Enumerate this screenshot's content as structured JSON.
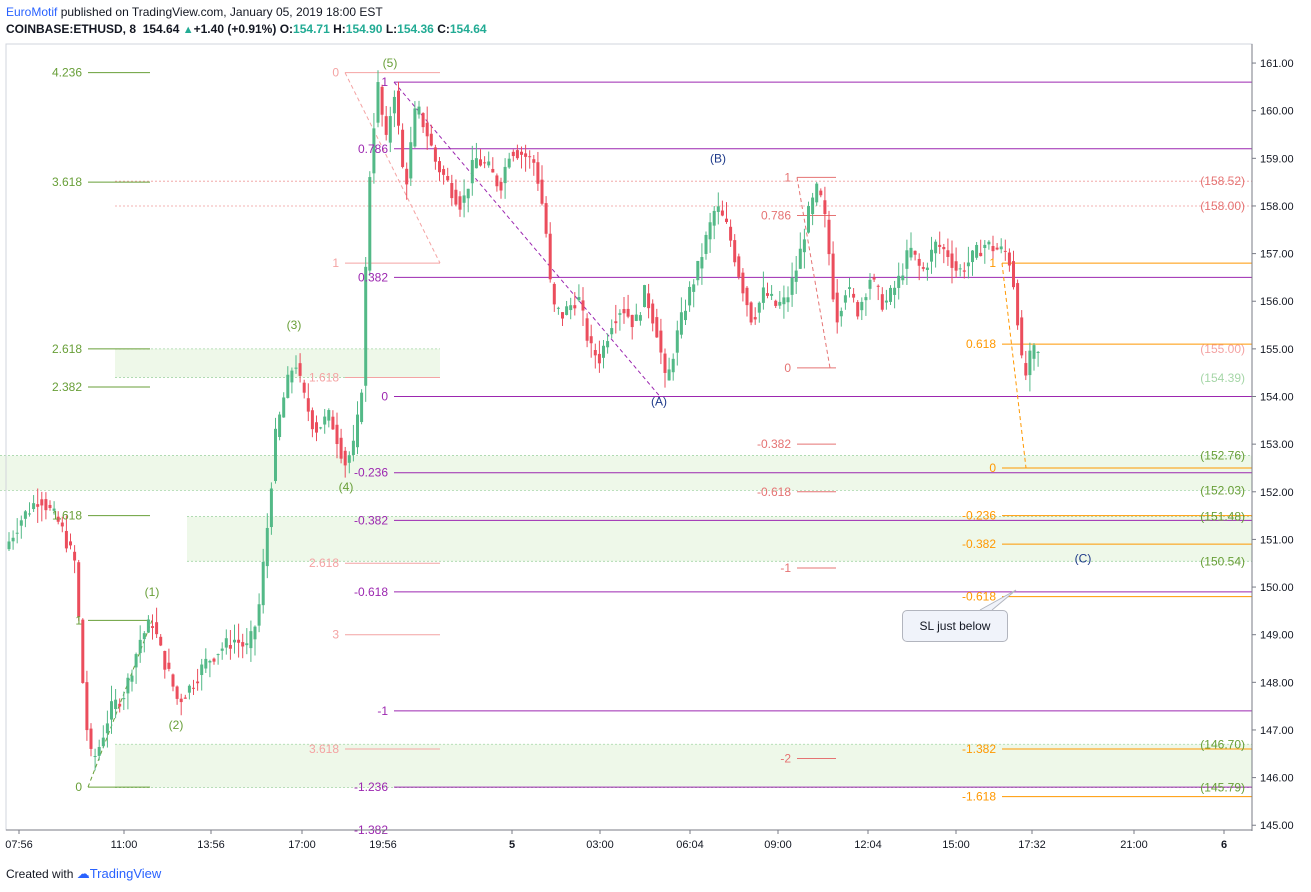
{
  "header": {
    "author": "EuroMotif",
    "published_text": "published on TradingView.com, January 05, 2019 18:00 EST",
    "symbol": "COINBASE:ETHUSD, 8",
    "last": "154.64",
    "change": "+1.40 (+0.91%)",
    "o_label": "O:",
    "o_value": "154.71",
    "h_label": "H:",
    "h_value": "154.90",
    "l_label": "L:",
    "l_value": "154.36",
    "c_label": "C:",
    "c_value": "154.64",
    "up_arrow_icon": "triangle-up-icon"
  },
  "footer": {
    "created_with": "Created with",
    "brand": "TradingView",
    "logo_icon": "tradingview-cloud-icon"
  },
  "callout": {
    "text": "SL just below"
  },
  "colors": {
    "up": "#53b987",
    "down": "#eb4d5c",
    "purple": "#9c27b0",
    "green": "#689f38",
    "orange": "#ff9800",
    "red": "#e57373",
    "pink": "#f4a3a3",
    "grey_green": "#8fa88f",
    "zone": "#e8f5e2",
    "wave_blue": "#1e3a8a"
  },
  "chart_data": {
    "type": "candlestick",
    "symbol": "COINBASE:ETHUSD",
    "interval": "8",
    "ylim": [
      144.9,
      161.4
    ],
    "y_ticks": [
      "161.00",
      "160.00",
      "159.00",
      "158.00",
      "157.00",
      "156.00",
      "155.00",
      "154.00",
      "153.00",
      "152.00",
      "151.00",
      "150.00",
      "149.00",
      "148.00",
      "147.00",
      "146.00",
      "145.00"
    ],
    "x_ticks": [
      "07:56",
      "11:00",
      "13:56",
      "17:00",
      "19:56",
      "5",
      "03:00",
      "06:04",
      "09:00",
      "12:04",
      "15:00",
      "17:32",
      "21:00",
      "6"
    ],
    "price_path": [
      [
        0,
        150.6
      ],
      [
        20,
        151.4
      ],
      [
        40,
        151.9
      ],
      [
        60,
        151.3
      ],
      [
        75,
        150.5
      ],
      [
        85,
        147.3
      ],
      [
        92,
        146.3
      ],
      [
        100,
        146.7
      ],
      [
        110,
        147.4
      ],
      [
        125,
        147.8
      ],
      [
        140,
        148.9
      ],
      [
        152,
        149.3
      ],
      [
        160,
        148.7
      ],
      [
        170,
        148.1
      ],
      [
        178,
        147.6
      ],
      [
        190,
        147.9
      ],
      [
        205,
        148.4
      ],
      [
        220,
        148.7
      ],
      [
        235,
        148.9
      ],
      [
        248,
        148.7
      ],
      [
        258,
        149.4
      ],
      [
        268,
        151.4
      ],
      [
        275,
        153.1
      ],
      [
        285,
        154.1
      ],
      [
        295,
        154.8
      ],
      [
        302,
        154.1
      ],
      [
        315,
        153.3
      ],
      [
        330,
        153.6
      ],
      [
        345,
        152.6
      ],
      [
        355,
        153.0
      ],
      [
        362,
        154.3
      ],
      [
        368,
        158.1
      ],
      [
        372,
        159.4
      ],
      [
        378,
        160.5
      ],
      [
        386,
        159.3
      ],
      [
        394,
        160.5
      ],
      [
        405,
        158.3
      ],
      [
        416,
        160.1
      ],
      [
        426,
        159.6
      ],
      [
        436,
        158.9
      ],
      [
        450,
        158.4
      ],
      [
        462,
        158.0
      ],
      [
        475,
        159.0
      ],
      [
        488,
        158.8
      ],
      [
        500,
        158.4
      ],
      [
        510,
        159.2
      ],
      [
        522,
        159.1
      ],
      [
        535,
        158.9
      ],
      [
        545,
        157.7
      ],
      [
        552,
        155.9
      ],
      [
        562,
        155.7
      ],
      [
        578,
        156.1
      ],
      [
        590,
        155.0
      ],
      [
        600,
        154.8
      ],
      [
        612,
        155.6
      ],
      [
        622,
        155.9
      ],
      [
        635,
        155.5
      ],
      [
        645,
        156.2
      ],
      [
        658,
        155.3
      ],
      [
        666,
        154.2
      ],
      [
        676,
        155.2
      ],
      [
        688,
        156.1
      ],
      [
        698,
        156.7
      ],
      [
        706,
        157.3
      ],
      [
        716,
        158.0
      ],
      [
        728,
        157.5
      ],
      [
        740,
        156.5
      ],
      [
        752,
        155.6
      ],
      [
        764,
        156.2
      ],
      [
        776,
        155.9
      ],
      [
        786,
        156.0
      ],
      [
        798,
        156.8
      ],
      [
        808,
        157.8
      ],
      [
        818,
        158.4
      ],
      [
        826,
        157.6
      ],
      [
        836,
        155.6
      ],
      [
        846,
        156.3
      ],
      [
        858,
        155.8
      ],
      [
        870,
        156.5
      ],
      [
        884,
        155.9
      ],
      [
        898,
        156.4
      ],
      [
        910,
        157.1
      ],
      [
        922,
        156.6
      ],
      [
        936,
        157.2
      ],
      [
        948,
        157.0
      ],
      [
        958,
        156.6
      ],
      [
        972,
        156.9
      ],
      [
        984,
        157.2
      ],
      [
        996,
        157.1
      ],
      [
        1008,
        157.0
      ],
      [
        1016,
        156.1
      ],
      [
        1020,
        155.0
      ],
      [
        1024,
        154.3
      ],
      [
        1030,
        154.8
      ],
      [
        1036,
        155.0
      ],
      [
        1042,
        154.64
      ]
    ],
    "fib_sets": [
      {
        "name": "fib-left",
        "color": "#689f38",
        "x1": 88,
        "x2": 150,
        "levels": [
          {
            "label": "4.236",
            "price": 160.8
          },
          {
            "label": "3.618",
            "price": 158.5
          },
          {
            "label": "2.618",
            "price": 155.0
          },
          {
            "label": "2.382",
            "price": 154.2
          },
          {
            "label": "1.618",
            "price": 151.5
          },
          {
            "label": "1",
            "price": 149.3
          },
          {
            "label": "0",
            "price": 145.8
          }
        ]
      },
      {
        "name": "fib-pink",
        "color": "#f4a3a3",
        "x1": 345,
        "x2": 440,
        "levels": [
          {
            "label": "0",
            "price": 160.8
          },
          {
            "label": "1",
            "price": 156.8
          },
          {
            "label": "1.618",
            "price": 154.4
          },
          {
            "label": "2.618",
            "price": 150.5
          },
          {
            "label": "3",
            "price": 149.0
          },
          {
            "label": "3.618",
            "price": 146.6
          }
        ]
      },
      {
        "name": "fib-purple",
        "color": "#9c27b0",
        "x1": 394,
        "x2": 1252,
        "levels": [
          {
            "label": "1",
            "price": 160.6
          },
          {
            "label": "0.786",
            "price": 159.2
          },
          {
            "label": "0.382",
            "price": 156.5
          },
          {
            "label": "0",
            "price": 154.0
          },
          {
            "label": "-0.236",
            "price": 152.4
          },
          {
            "label": "-0.382",
            "price": 151.4
          },
          {
            "label": "-0.618",
            "price": 149.9
          },
          {
            "label": "-1",
            "price": 147.4
          },
          {
            "label": "-1.236",
            "price": 145.8
          },
          {
            "label": "-1.382",
            "price": 144.9
          }
        ]
      },
      {
        "name": "fib-red",
        "color": "#e57373",
        "x1": 797,
        "x2": 836,
        "levels": [
          {
            "label": "1",
            "price": 158.6
          },
          {
            "label": "0.786",
            "price": 157.8
          },
          {
            "label": "0",
            "price": 154.6
          },
          {
            "label": "-0.382",
            "price": 153.0
          },
          {
            "label": "-0.618",
            "price": 152.0
          },
          {
            "label": "-1",
            "price": 150.4
          },
          {
            "label": "-2",
            "price": 146.4
          }
        ]
      },
      {
        "name": "fib-orange",
        "color": "#ff9800",
        "x1": 1002,
        "x2": 1252,
        "levels": [
          {
            "label": "1",
            "price": 156.8
          },
          {
            "label": "0.618",
            "price": 155.1
          },
          {
            "label": "0",
            "price": 152.5
          },
          {
            "label": "-0.236",
            "price": 151.5
          },
          {
            "label": "-0.382",
            "price": 150.9
          },
          {
            "label": "-0.618",
            "price": 149.8
          },
          {
            "label": "-1.382",
            "price": 146.6
          },
          {
            "label": "-1.618",
            "price": 145.6
          }
        ]
      }
    ],
    "price_labels": [
      {
        "text": "(158.52)",
        "price": 158.52,
        "color": "#e57373"
      },
      {
        "text": "(158.00)",
        "price": 158.0,
        "color": "#e57373"
      },
      {
        "text": "(155.00)",
        "price": 155.0,
        "color": "#f4a3a3"
      },
      {
        "text": "(154.39)",
        "price": 154.39,
        "color": "#a5d6a7"
      },
      {
        "text": "(152.76)",
        "price": 152.76,
        "color": "#689f38"
      },
      {
        "text": "(152.03)",
        "price": 152.03,
        "color": "#689f38"
      },
      {
        "text": "(151.48)",
        "price": 151.48,
        "color": "#689f38"
      },
      {
        "text": "(150.54)",
        "price": 150.54,
        "color": "#689f38"
      },
      {
        "text": "(146.70)",
        "price": 146.7,
        "color": "#689f38"
      },
      {
        "text": "(145.79)",
        "price": 145.79,
        "color": "#689f38"
      }
    ],
    "zones": [
      {
        "x1": 115,
        "x2": 440,
        "p1": 155.0,
        "p2": 154.4
      },
      {
        "x1": 0,
        "x2": 1252,
        "p1": 152.76,
        "p2": 152.03
      },
      {
        "x1": 187,
        "x2": 1252,
        "p1": 151.48,
        "p2": 150.54
      },
      {
        "x1": 115,
        "x2": 1252,
        "p1": 146.7,
        "p2": 145.79
      }
    ],
    "red_dotted_levels": [
      158.52,
      158.0
    ],
    "wave_labels": [
      {
        "text": "(1)",
        "x": 152,
        "price": 149.9,
        "color": "#689f38"
      },
      {
        "text": "(2)",
        "x": 176,
        "price": 147.1,
        "color": "#689f38"
      },
      {
        "text": "(3)",
        "x": 294,
        "price": 155.5,
        "color": "#689f38"
      },
      {
        "text": "(4)",
        "x": 346,
        "price": 152.1,
        "color": "#689f38"
      },
      {
        "text": "(5)",
        "x": 390,
        "price": 161.0,
        "color": "#689f38"
      },
      {
        "text": "(A)",
        "x": 659,
        "price": 153.9,
        "color": "#1e3a8a"
      },
      {
        "text": "(B)",
        "x": 718,
        "price": 159.0,
        "color": "#1e3a8a"
      },
      {
        "text": "(C)",
        "x": 1083,
        "price": 150.6,
        "color": "#1e3a8a"
      }
    ]
  }
}
